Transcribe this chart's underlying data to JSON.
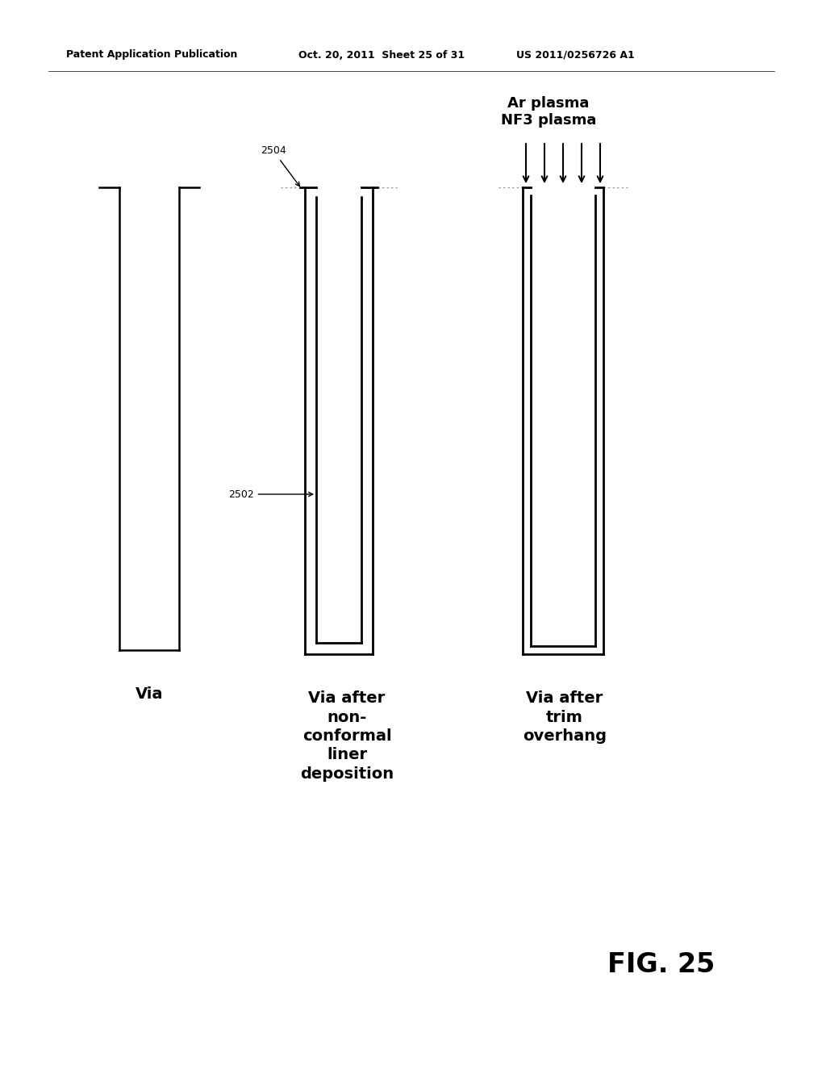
{
  "bg_color": "#ffffff",
  "line_color": "#000000",
  "header_text1": "Patent Application Publication",
  "header_text2": "Oct. 20, 2011  Sheet 25 of 31",
  "header_text3": "US 2011/0256726 A1",
  "fig_label": "FIG. 25",
  "label1": "Via",
  "label2": "Via after\nnon-\nconformal\nliner\ndeposition",
  "label3": "Via after\ntrim\noverhang",
  "plasma_label": "Ar plasma\nNF3 plasma",
  "ref_2504": "2504",
  "ref_2502": "2502"
}
